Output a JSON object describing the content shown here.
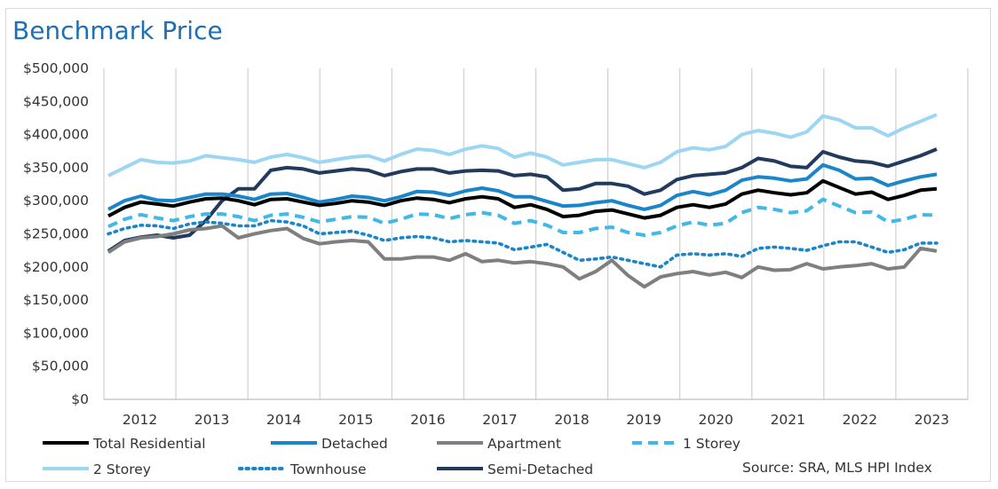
{
  "title": "Benchmark Price",
  "source": "Source: SRA, MLS HPI Index",
  "colors": {
    "total_residential": "#000000",
    "detached": "#1a86c9",
    "apartment": "#7f7f7f",
    "one_storey": "#41b8e6",
    "two_storey": "#9dd6f2",
    "townhouse": "#1a86c9",
    "semi_detached": "#213a5e"
  },
  "chart_data": {
    "type": "line",
    "title": "Benchmark Price",
    "xlabel": "",
    "ylabel": "",
    "ylim": [
      0,
      500000
    ],
    "y_ticks": [
      "$0",
      "$50,000",
      "$100,000",
      "$150,000",
      "$200,000",
      "$250,000",
      "$300,000",
      "$350,000",
      "$400,000",
      "$450,000",
      "$500,000"
    ],
    "x_ticks": [
      "2012",
      "2013",
      "2014",
      "2015",
      "2016",
      "2017",
      "2018",
      "2019",
      "2020",
      "2021",
      "2022",
      "2023"
    ],
    "x_start": "2011-07",
    "x_end": "2023-03",
    "grid": "vertical",
    "legend_position": "bottom",
    "series": [
      {
        "name": "Total Residential",
        "color": "#000000",
        "dash": "solid",
        "values": [
          277000,
          290000,
          298000,
          295000,
          292000,
          298000,
          303000,
          304000,
          300000,
          294000,
          302000,
          303000,
          298000,
          293000,
          296000,
          300000,
          298000,
          293000,
          300000,
          304000,
          302000,
          297000,
          303000,
          306000,
          303000,
          290000,
          294000,
          287000,
          276000,
          278000,
          284000,
          286000,
          280000,
          274000,
          278000,
          290000,
          294000,
          290000,
          295000,
          310000,
          316000,
          312000,
          309000,
          312000,
          330000,
          320000,
          310000,
          313000,
          302000,
          308000,
          316000,
          318000
        ]
      },
      {
        "name": "Detached",
        "color": "#1a86c9",
        "dash": "solid",
        "values": [
          287000,
          300000,
          307000,
          301000,
          300000,
          305000,
          310000,
          310000,
          307000,
          302000,
          310000,
          311000,
          305000,
          298000,
          302000,
          307000,
          305000,
          300000,
          306000,
          314000,
          313000,
          308000,
          315000,
          319000,
          315000,
          306000,
          306000,
          299000,
          292000,
          293000,
          297000,
          300000,
          293000,
          287000,
          293000,
          308000,
          314000,
          309000,
          316000,
          331000,
          336000,
          334000,
          330000,
          333000,
          354000,
          346000,
          333000,
          334000,
          323000,
          330000,
          336000,
          340000
        ]
      },
      {
        "name": "Apartment",
        "color": "#7f7f7f",
        "dash": "solid",
        "values": [
          222000,
          238000,
          244000,
          246000,
          250000,
          256000,
          258000,
          262000,
          244000,
          250000,
          255000,
          258000,
          243000,
          235000,
          238000,
          240000,
          238000,
          212000,
          212000,
          215000,
          215000,
          210000,
          220000,
          208000,
          210000,
          206000,
          208000,
          205000,
          200000,
          182000,
          193000,
          210000,
          187000,
          170000,
          185000,
          190000,
          193000,
          188000,
          192000,
          184000,
          200000,
          195000,
          196000,
          205000,
          197000,
          200000,
          202000,
          205000,
          197000,
          200000,
          228000,
          224000
        ]
      },
      {
        "name": "1 Storey",
        "color": "#41b8e6",
        "dash": "dash",
        "values": [
          261000,
          272000,
          279000,
          274000,
          270000,
          276000,
          280000,
          280000,
          276000,
          270000,
          278000,
          280000,
          275000,
          268000,
          272000,
          276000,
          275000,
          266000,
          272000,
          280000,
          279000,
          273000,
          279000,
          282000,
          278000,
          266000,
          270000,
          263000,
          252000,
          252000,
          258000,
          260000,
          252000,
          248000,
          252000,
          262000,
          268000,
          263000,
          266000,
          282000,
          290000,
          287000,
          282000,
          285000,
          302000,
          292000,
          282000,
          283000,
          268000,
          272000,
          279000,
          278000
        ]
      },
      {
        "name": "2 Storey",
        "color": "#9dd6f2",
        "dash": "solid",
        "values": [
          338000,
          350000,
          362000,
          358000,
          357000,
          360000,
          368000,
          365000,
          362000,
          358000,
          366000,
          370000,
          365000,
          358000,
          362000,
          366000,
          368000,
          360000,
          370000,
          378000,
          376000,
          370000,
          378000,
          383000,
          379000,
          366000,
          372000,
          366000,
          354000,
          358000,
          362000,
          362000,
          356000,
          350000,
          358000,
          374000,
          380000,
          377000,
          382000,
          400000,
          406000,
          402000,
          396000,
          404000,
          428000,
          422000,
          410000,
          410000,
          398000,
          410000,
          420000,
          430000
        ]
      },
      {
        "name": "Townhouse",
        "color": "#1a86c9",
        "dash": "dot",
        "values": [
          250000,
          258000,
          263000,
          262000,
          258000,
          265000,
          268000,
          266000,
          262000,
          262000,
          270000,
          268000,
          262000,
          250000,
          252000,
          254000,
          248000,
          240000,
          244000,
          246000,
          244000,
          238000,
          240000,
          238000,
          236000,
          226000,
          230000,
          234000,
          222000,
          210000,
          212000,
          215000,
          210000,
          205000,
          200000,
          218000,
          220000,
          218000,
          220000,
          216000,
          228000,
          230000,
          228000,
          225000,
          232000,
          238000,
          238000,
          230000,
          222000,
          226000,
          236000,
          236000
        ]
      },
      {
        "name": "Semi-Detached",
        "color": "#213a5e",
        "dash": "solid",
        "values": [
          224000,
          240000,
          245000,
          248000,
          244000,
          248000,
          270000,
          300000,
          318000,
          318000,
          346000,
          350000,
          348000,
          342000,
          345000,
          348000,
          346000,
          338000,
          344000,
          348000,
          348000,
          342000,
          345000,
          346000,
          345000,
          338000,
          340000,
          336000,
          316000,
          318000,
          326000,
          326000,
          322000,
          310000,
          316000,
          332000,
          338000,
          340000,
          342000,
          350000,
          364000,
          360000,
          352000,
          350000,
          374000,
          366000,
          360000,
          358000,
          352000,
          360000,
          368000,
          378000
        ]
      }
    ]
  }
}
